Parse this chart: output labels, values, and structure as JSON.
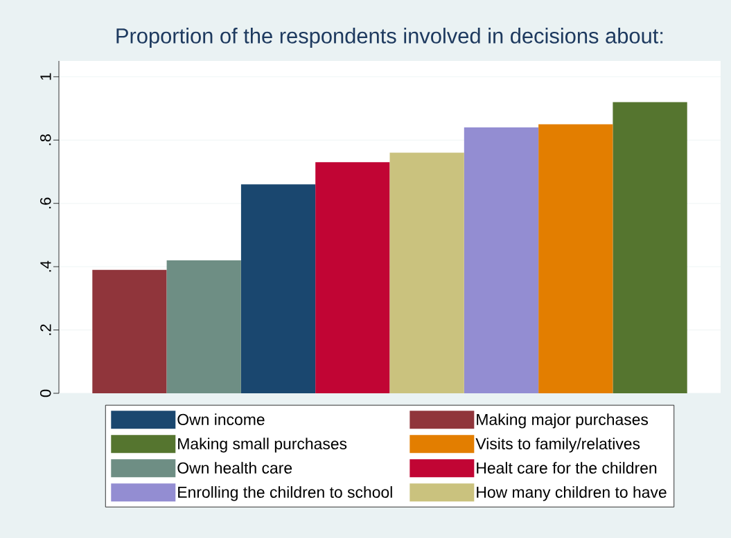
{
  "chart_data": {
    "type": "bar",
    "title": "Proportion of the respondents involved in decisions about:",
    "categories": [
      null,
      null,
      null,
      null,
      null,
      null,
      null,
      null
    ],
    "series": [
      {
        "name": "Own income",
        "color": "#1a476f",
        "values": [
          null,
          null,
          0.66,
          null,
          null,
          null,
          null,
          null
        ]
      },
      {
        "name": "Making major purchases",
        "color": "#90353b",
        "values": [
          0.39,
          null,
          null,
          null,
          null,
          null,
          null,
          null
        ]
      },
      {
        "name": "Making small purchases",
        "color": "#55752f",
        "values": [
          null,
          null,
          null,
          null,
          null,
          null,
          null,
          0.92
        ]
      },
      {
        "name": "Visits to family/relatives",
        "color": "#e37e00",
        "values": [
          null,
          null,
          null,
          null,
          null,
          null,
          0.85,
          null
        ]
      },
      {
        "name": "Own health care",
        "color": "#6e8e84",
        "values": [
          null,
          0.42,
          null,
          null,
          null,
          null,
          null,
          null
        ]
      },
      {
        "name": "Healt care for the children",
        "color": "#c10534",
        "values": [
          null,
          null,
          null,
          0.73,
          null,
          null,
          null,
          null
        ]
      },
      {
        "name": "Enrolling the children to school",
        "color": "#938dd2",
        "values": [
          null,
          null,
          null,
          null,
          null,
          0.84,
          null,
          null
        ]
      },
      {
        "name": "How many children to have",
        "color": "#cac27e",
        "values": [
          null,
          null,
          null,
          null,
          0.76,
          null,
          null,
          null
        ]
      }
    ],
    "ylim": [
      0,
      1.05
    ],
    "yticks": [
      {
        "value": 0,
        "label": "0"
      },
      {
        "value": 0.2,
        "label": ".2"
      },
      {
        "value": 0.4,
        "label": ".4"
      },
      {
        "value": 0.6,
        "label": ".6"
      },
      {
        "value": 0.8,
        "label": ".8"
      },
      {
        "value": 1,
        "label": "1"
      }
    ],
    "grid": "y",
    "legend": "bottom"
  }
}
